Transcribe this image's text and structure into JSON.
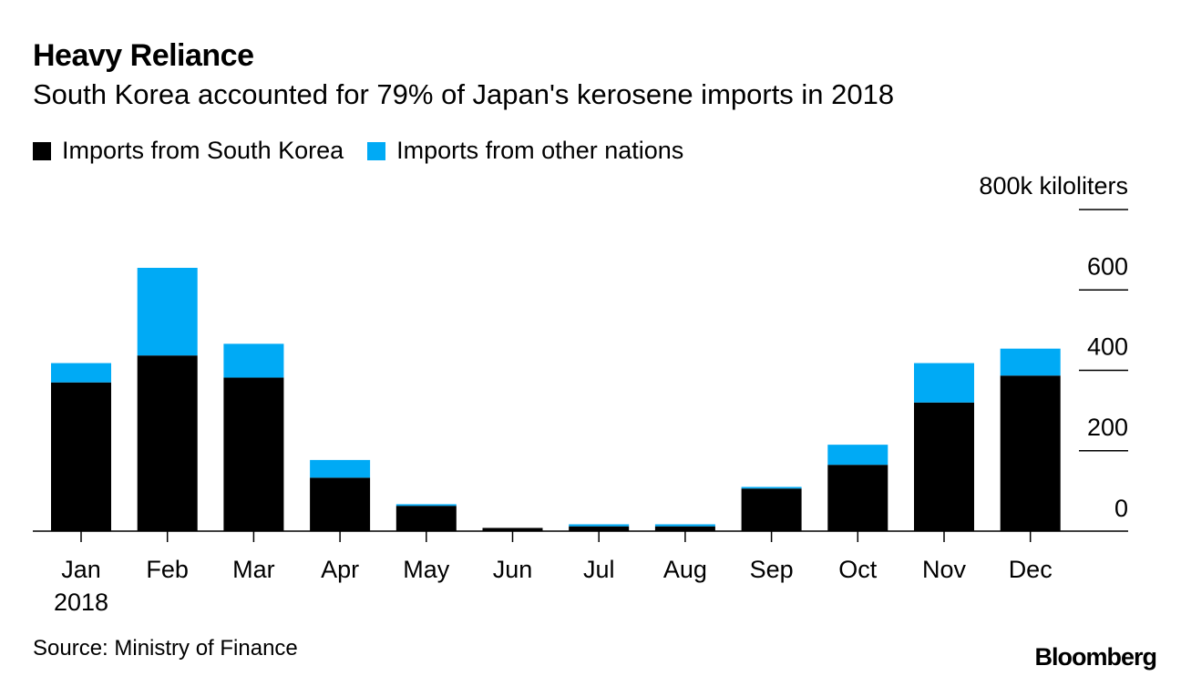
{
  "header": {
    "title": "Heavy Reliance",
    "subtitle": "South Korea accounted for 79% of Japan's kerosene imports in 2018"
  },
  "legend": {
    "items": [
      {
        "label": "Imports from South Korea",
        "color": "#000000"
      },
      {
        "label": "Imports from other nations",
        "color": "#00aaf5"
      }
    ]
  },
  "footer": {
    "source": "Source: Ministry of Finance",
    "brand": "Bloomberg"
  },
  "chart_data": {
    "type": "bar",
    "stacked": true,
    "title": "Heavy Reliance",
    "subtitle": "South Korea accounted for 79% of Japan's kerosene imports in 2018",
    "categories": [
      "Jan",
      "Feb",
      "Mar",
      "Apr",
      "May",
      "Jun",
      "Jul",
      "Aug",
      "Sep",
      "Oct",
      "Nov",
      "Dec"
    ],
    "category_sublabels": [
      "2018",
      "",
      "",
      "",
      "",
      "",
      "",
      "",
      "",
      "",
      "",
      ""
    ],
    "series": [
      {
        "name": "Imports from South Korea",
        "color": "#000000",
        "values": [
          370,
          437,
          382,
          133,
          63,
          8,
          12,
          12,
          106,
          165,
          320,
          387
        ]
      },
      {
        "name": "Imports from other nations",
        "color": "#00aaf5",
        "values": [
          48,
          218,
          84,
          44,
          4,
          0,
          5,
          5,
          4,
          50,
          98,
          67
        ]
      }
    ],
    "y_unit": "800k kiloliters",
    "y_ticks": [
      0,
      200,
      400,
      600,
      800
    ],
    "y_tick_labels": [
      "0",
      "200",
      "400",
      "600",
      "800k kiloliters"
    ],
    "ylim": [
      0,
      800
    ],
    "y_axis_side": "right",
    "xlabel": "",
    "ylabel": ""
  }
}
